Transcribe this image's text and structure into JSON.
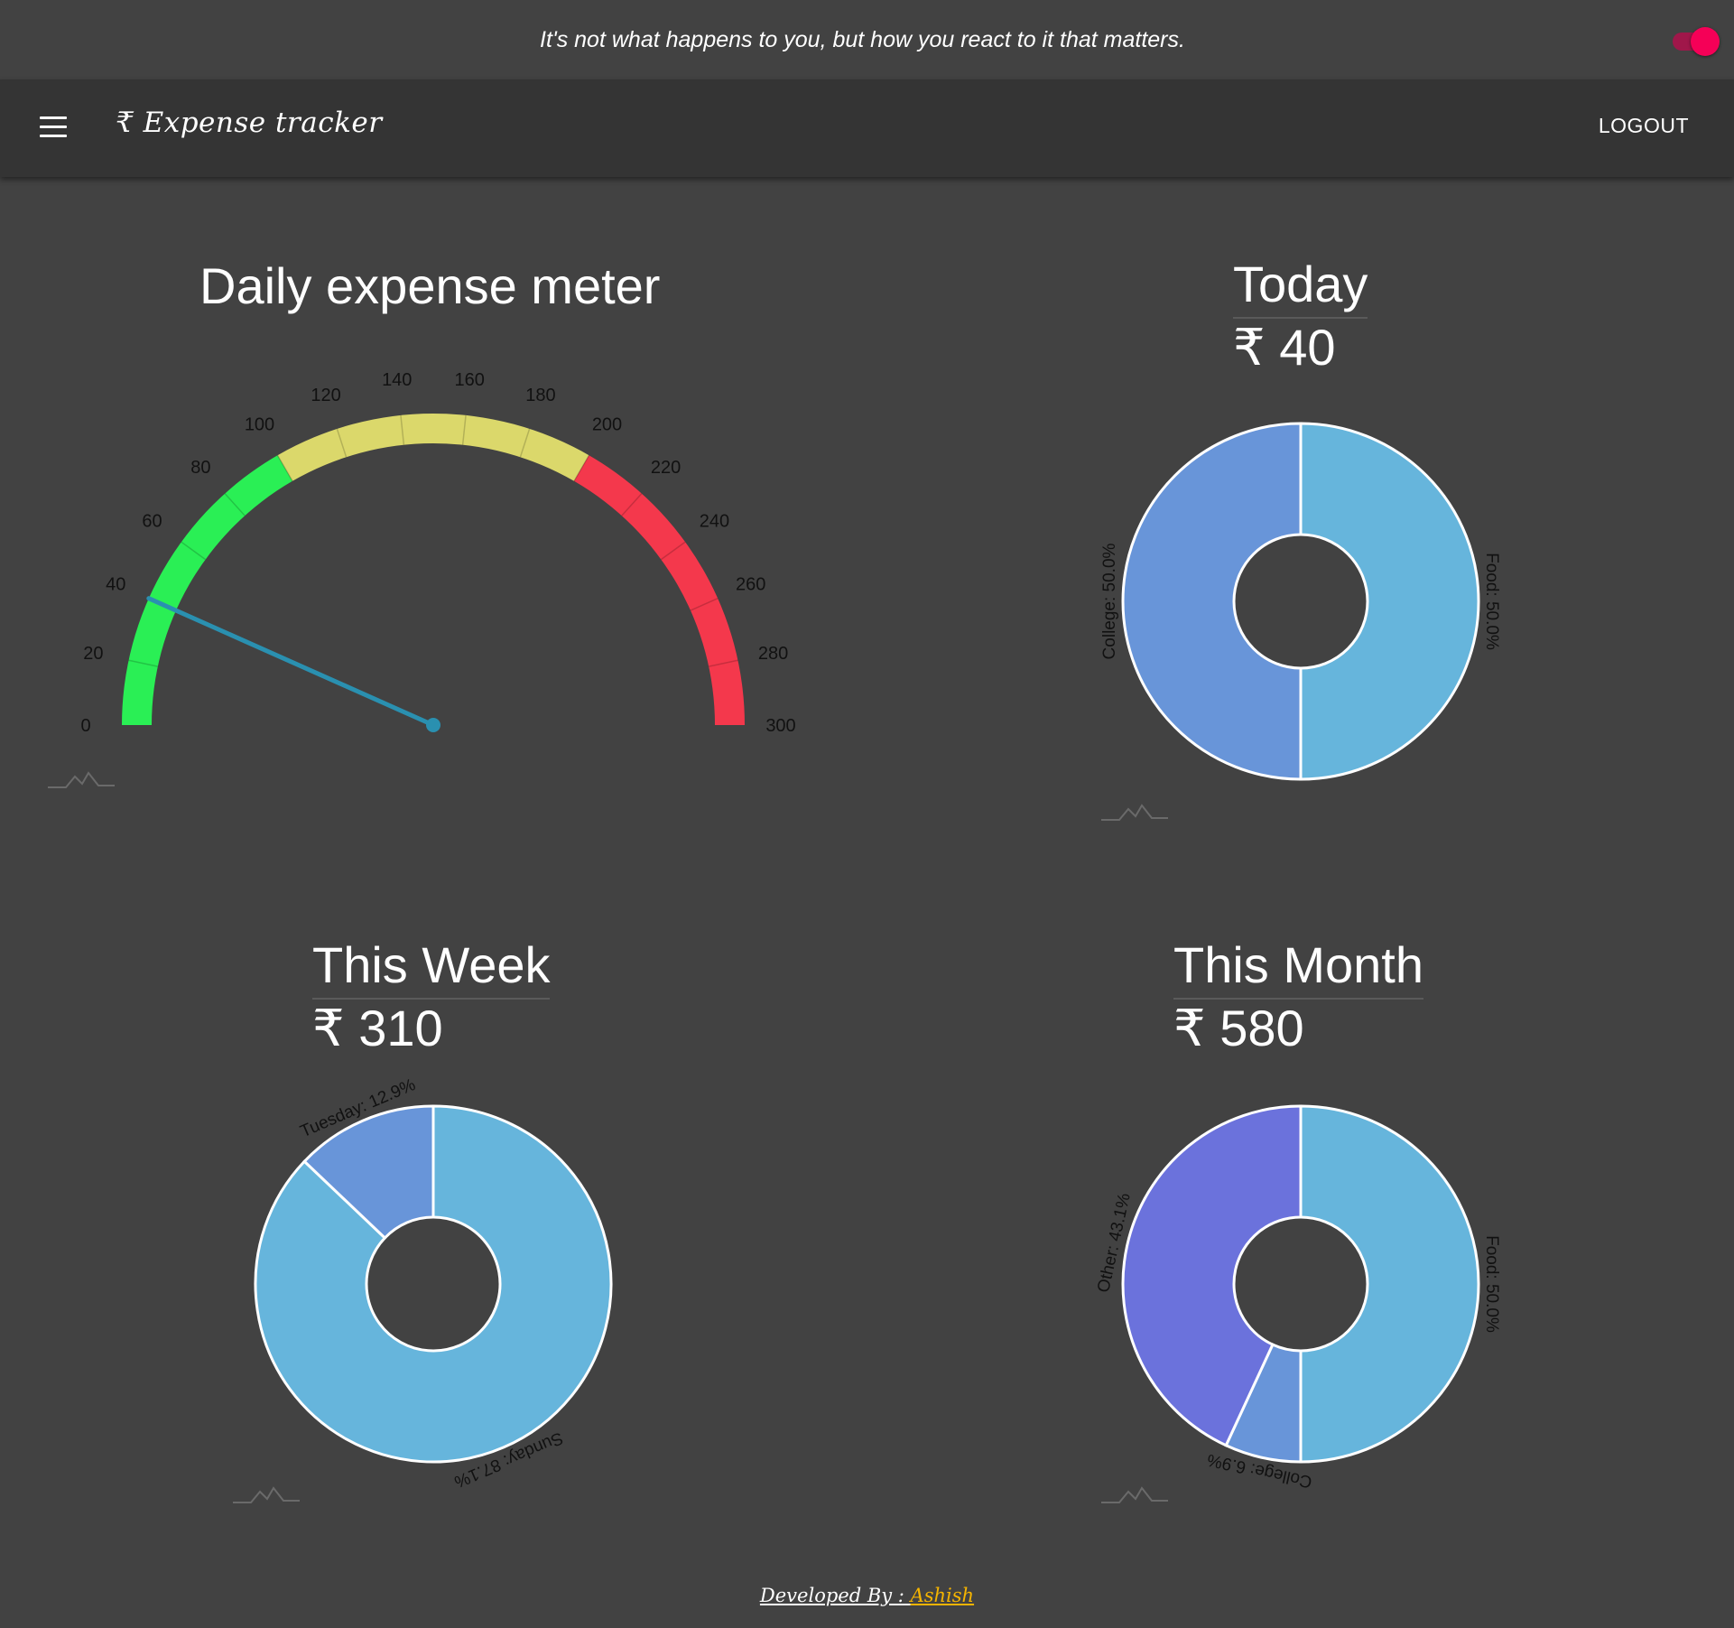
{
  "quote": "It's not what happens to you, but how you react to it that matters.",
  "theme_toggle": {
    "on": true,
    "accent": "#f50057"
  },
  "appbar": {
    "menu_icon": "hamburger-icon",
    "title": "₹ Expense tracker",
    "logout_label": "LOGOUT"
  },
  "meter": {
    "title": "Daily expense meter",
    "min": 0,
    "max": 300,
    "value": 40,
    "ticks": [
      "0",
      "20",
      "40",
      "60",
      "80",
      "100",
      "120",
      "140",
      "160",
      "180",
      "200",
      "220",
      "240",
      "260",
      "280",
      "300"
    ],
    "bands": [
      {
        "from": 0,
        "to": 100,
        "color": "#2aef55"
      },
      {
        "from": 100,
        "to": 200,
        "color": "#dbd86b"
      },
      {
        "from": 200,
        "to": 300,
        "color": "#f4384c"
      }
    ],
    "needle_color": "#2a90b0"
  },
  "today": {
    "title": "Today",
    "amount": "₹ 40",
    "chart_data": {
      "type": "pie",
      "categories": [
        "Food",
        "College"
      ],
      "values": [
        50.0,
        50.0
      ],
      "labels": [
        "Food: 50.0%",
        "College: 50.0%"
      ],
      "colors": [
        "#66b5dc",
        "#6895d9"
      ]
    }
  },
  "week": {
    "title": "This Week",
    "amount": "₹ 310",
    "chart_data": {
      "type": "pie",
      "categories": [
        "Sunday",
        "Tuesday"
      ],
      "values": [
        87.1,
        12.9
      ],
      "labels": [
        "Sunday: 87.1%",
        "Tuesday: 12.9%"
      ],
      "colors": [
        "#66b5dc",
        "#6895d9"
      ]
    }
  },
  "month": {
    "title": "This Month",
    "amount": "₹ 580",
    "chart_data": {
      "type": "pie",
      "categories": [
        "Food",
        "College",
        "Other"
      ],
      "values": [
        50.0,
        6.9,
        43.1
      ],
      "labels": [
        "Food: 50.0%",
        "College: 6.9%",
        "Other: 43.1%"
      ],
      "colors": [
        "#66b5dc",
        "#6895d9",
        "#6b72dc"
      ]
    }
  },
  "footer": {
    "prefix": "Developed By : ",
    "author": "Ashish",
    "author_color": "#f5b400"
  },
  "watermark_icon": "chart-logo-icon"
}
